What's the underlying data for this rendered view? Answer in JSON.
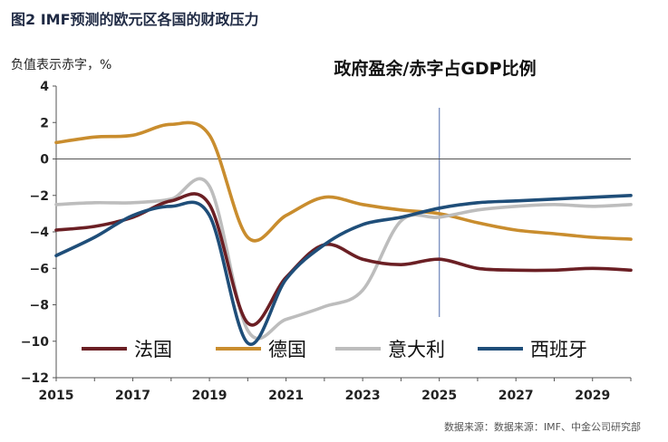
{
  "figure_title": "图2   IMF预测的欧元区各国的财政压力",
  "source": "数据来源：数据来源：IMF、中金公司研究部",
  "chart_data": {
    "type": "line",
    "title": "政府盈余/赤字占GDP比例",
    "ylabel": "负值表示赤字，%",
    "xlabel": "",
    "xlim": [
      2015,
      2030
    ],
    "ylim": [
      -12,
      4
    ],
    "x_ticks": [
      2015,
      2017,
      2019,
      2021,
      2023,
      2025,
      2027,
      2029
    ],
    "y_ticks": [
      4,
      2,
      0,
      -2,
      -4,
      -6,
      -8,
      -10,
      -12
    ],
    "y_tick_labels": [
      "4",
      "2",
      "0",
      "−2",
      "−4",
      "−6",
      "−8",
      "−10",
      "−12"
    ],
    "reference_line_x": 2025,
    "legend_position": "bottom-inside",
    "x": [
      2015,
      2016,
      2017,
      2018,
      2019,
      2020,
      2021,
      2022,
      2023,
      2024,
      2025,
      2026,
      2027,
      2028,
      2029,
      2030
    ],
    "series": [
      {
        "name": "法国",
        "color": "#6b1f24",
        "values": [
          -3.9,
          -3.7,
          -3.2,
          -2.3,
          -2.5,
          -9.0,
          -6.5,
          -4.7,
          -5.5,
          -5.8,
          -5.5,
          -6.0,
          -6.1,
          -6.1,
          -6.0,
          -6.1
        ]
      },
      {
        "name": "德国",
        "color": "#c98d2e",
        "values": [
          0.9,
          1.2,
          1.3,
          1.9,
          1.3,
          -4.3,
          -3.1,
          -2.1,
          -2.5,
          -2.8,
          -3.0,
          -3.5,
          -3.9,
          -4.1,
          -4.3,
          -4.4
        ]
      },
      {
        "name": "意大利",
        "color": "#bdbdbd",
        "values": [
          -2.5,
          -2.4,
          -2.4,
          -2.2,
          -1.5,
          -9.4,
          -8.8,
          -8.1,
          -7.2,
          -3.4,
          -3.2,
          -2.8,
          -2.6,
          -2.5,
          -2.6,
          -2.5
        ]
      },
      {
        "name": "西班牙",
        "color": "#1f4e79",
        "values": [
          -5.3,
          -4.3,
          -3.1,
          -2.6,
          -3.1,
          -10.1,
          -6.6,
          -4.7,
          -3.6,
          -3.2,
          -2.7,
          -2.4,
          -2.3,
          -2.2,
          -2.1,
          -2.0
        ]
      }
    ]
  }
}
